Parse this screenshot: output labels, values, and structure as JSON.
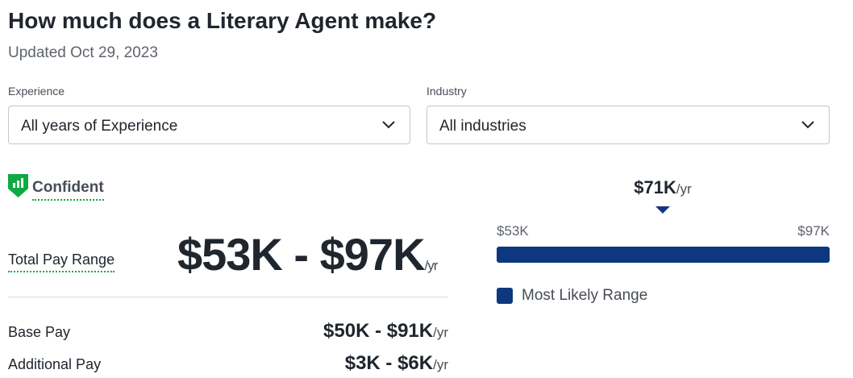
{
  "header": {
    "title": "How much does a Literary Agent make?",
    "updated": "Updated Oct 29, 2023"
  },
  "filters": [
    {
      "label": "Experience",
      "value": "All years of Experience"
    },
    {
      "label": "Industry",
      "value": "All industries"
    }
  ],
  "confidence": "Confident",
  "total_pay": {
    "label": "Total Pay Range",
    "range": "$53K - $97K",
    "unit": "/yr"
  },
  "breakdown": [
    {
      "label": "Base Pay",
      "range": "$50K - $91K",
      "unit": "/yr"
    },
    {
      "label": "Additional Pay",
      "range": "$3K - $6K",
      "unit": "/yr"
    }
  ],
  "range_bar": {
    "median": "$71K",
    "median_unit": "/yr",
    "low": "$53K",
    "high": "$97K",
    "legend": "Most Likely Range"
  }
}
